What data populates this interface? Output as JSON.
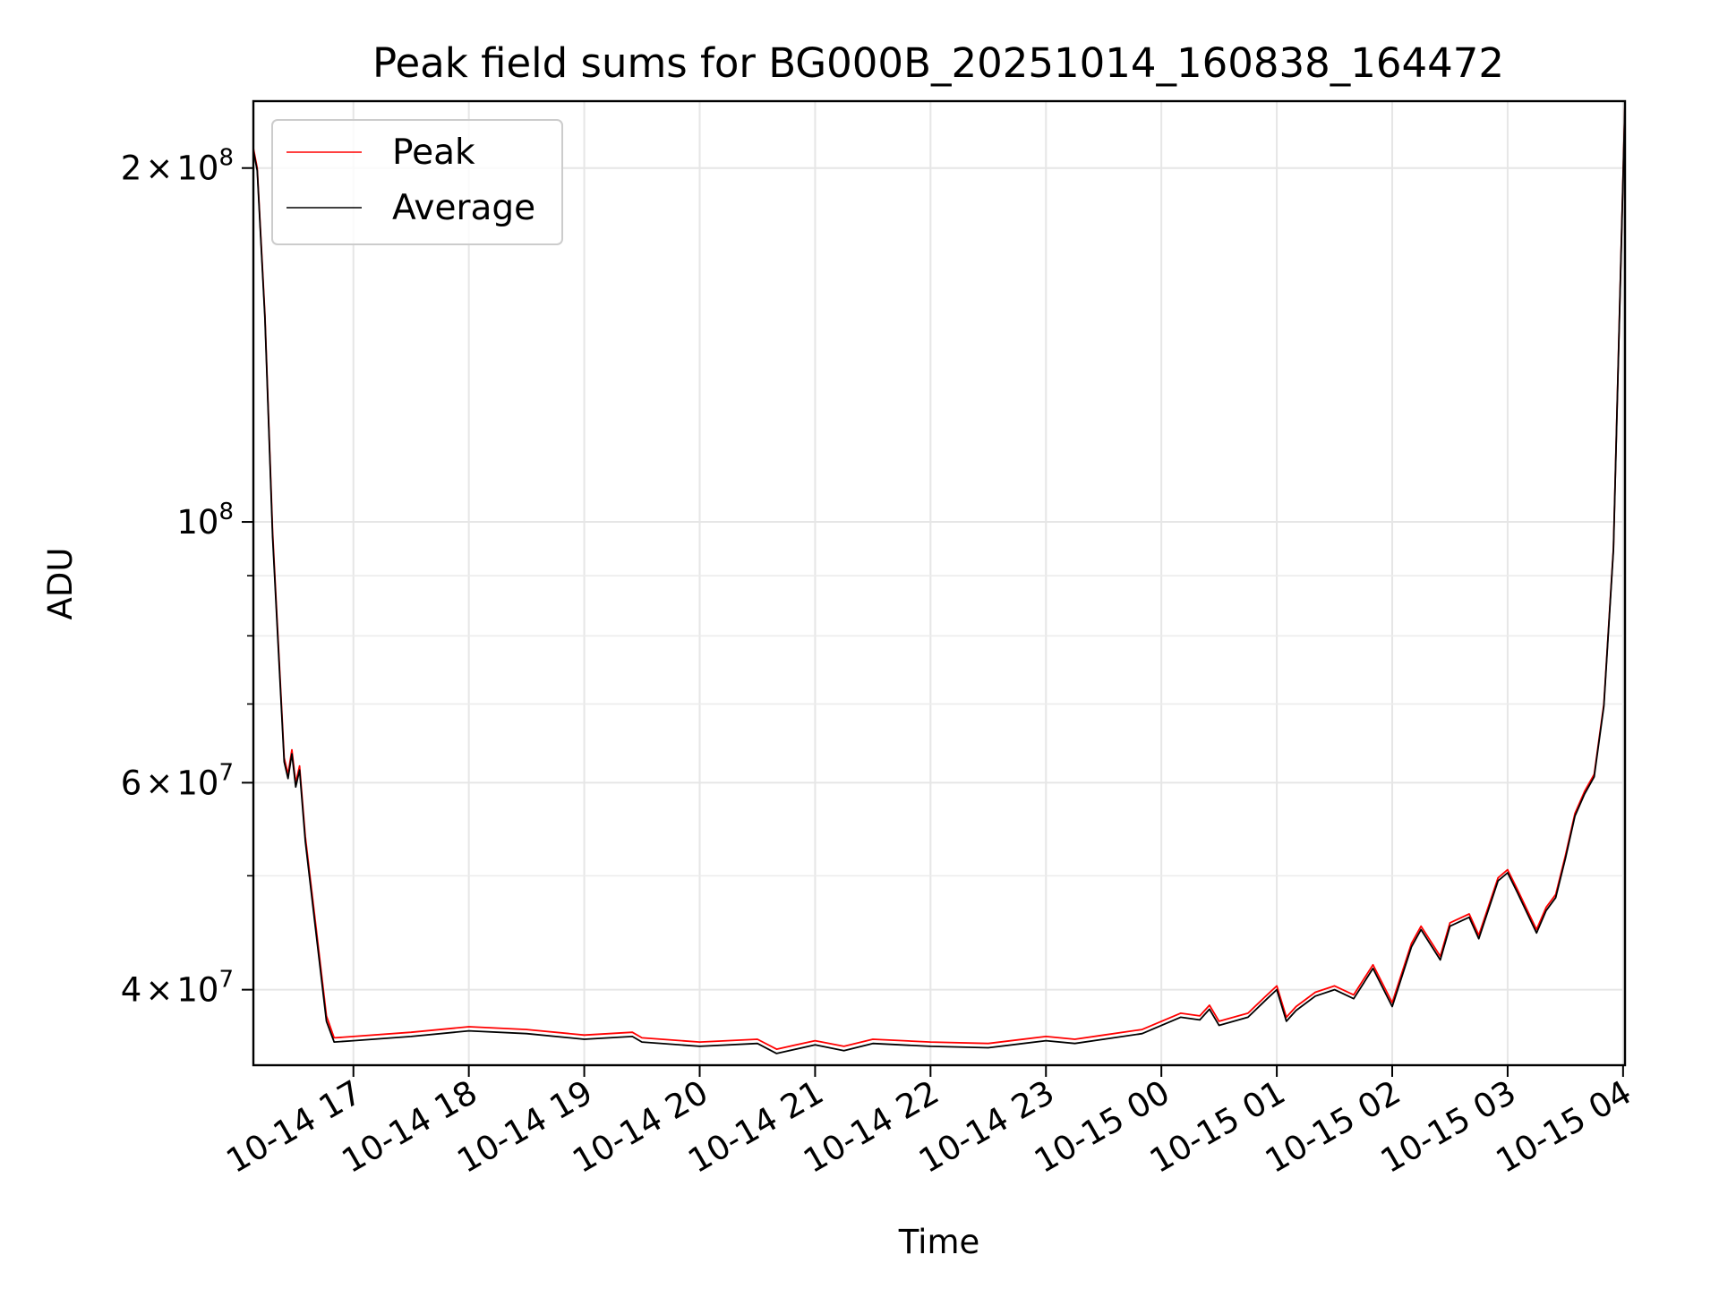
{
  "chart_data": {
    "type": "line",
    "title": "Peak field sums for BG000B_20251014_160838_164472",
    "xlabel": "Time",
    "ylabel": "ADU",
    "yscale": "log",
    "xlim": [
      "2025-10-14 16:08",
      "2025-10-15 04:01"
    ],
    "ylim": [
      34500000,
      228000000
    ],
    "grid": true,
    "legend_position": "upper-left",
    "x_ticks": [
      {
        "t": "2025-10-14 17:00",
        "label": "10-14 17"
      },
      {
        "t": "2025-10-14 18:00",
        "label": "10-14 18"
      },
      {
        "t": "2025-10-14 19:00",
        "label": "10-14 19"
      },
      {
        "t": "2025-10-14 20:00",
        "label": "10-14 20"
      },
      {
        "t": "2025-10-14 21:00",
        "label": "10-14 21"
      },
      {
        "t": "2025-10-14 22:00",
        "label": "10-14 22"
      },
      {
        "t": "2025-10-14 23:00",
        "label": "10-14 23"
      },
      {
        "t": "2025-10-15 00:00",
        "label": "10-15 00"
      },
      {
        "t": "2025-10-15 01:00",
        "label": "10-15 01"
      },
      {
        "t": "2025-10-15 02:00",
        "label": "10-15 02"
      },
      {
        "t": "2025-10-15 03:00",
        "label": "10-15 03"
      },
      {
        "t": "2025-10-15 04:00",
        "label": "10-15 04"
      }
    ],
    "y_major_ticks": [
      {
        "v": 40000000,
        "mantissa": "4",
        "times": "×",
        "base": "10",
        "exp": "7"
      },
      {
        "v": 60000000,
        "mantissa": "6",
        "times": "×",
        "base": "10",
        "exp": "7"
      },
      {
        "v": 100000000,
        "mantissa": "",
        "times": "",
        "base": "10",
        "exp": "8"
      },
      {
        "v": 200000000,
        "mantissa": "2",
        "times": "×",
        "base": "10",
        "exp": "8"
      }
    ],
    "y_minor_ticks": [
      50000000,
      70000000,
      80000000,
      90000000
    ],
    "series": [
      {
        "name": "Peak",
        "color": "#ff0000",
        "x": [
          "2025-10-14 16:08",
          "2025-10-14 16:10",
          "2025-10-14 16:14",
          "2025-10-14 16:18",
          "2025-10-14 16:24",
          "2025-10-14 16:26",
          "16:28",
          "2025-10-14 16:30",
          "2025-10-14 16:32",
          "2025-10-14 16:35",
          "2025-10-14 16:40",
          "2025-10-14 16:46",
          "2025-10-14 16:50",
          "2025-10-14 17:00",
          "2025-10-14 17:30",
          "2025-10-14 18:00",
          "2025-10-14 18:30",
          "2025-10-14 19:00",
          "2025-10-14 19:25",
          "2025-10-14 19:30",
          "2025-10-14 20:00",
          "2025-10-14 20:30",
          "2025-10-14 20:40",
          "2025-10-14 21:00",
          "2025-10-14 21:15",
          "2025-10-14 21:30",
          "2025-10-14 22:00",
          "2025-10-14 22:30",
          "2025-10-14 23:00",
          "2025-10-14 23:15",
          "2025-10-14 23:30",
          "2025-10-14 23:50",
          "2025-10-15 00:10",
          "2025-10-15 00:20",
          "2025-10-15 00:25",
          "2025-10-15 00:30",
          "2025-10-15 00:45",
          "2025-10-15 00:55",
          "2025-10-15 01:00",
          "2025-10-15 01:05",
          "2025-10-15 01:10",
          "2025-10-15 01:20",
          "2025-10-15 01:30",
          "2025-10-15 01:40",
          "2025-10-15 01:50",
          "2025-10-15 02:00",
          "2025-10-15 02:10",
          "2025-10-15 02:15",
          "2025-10-15 02:25",
          "2025-10-15 02:30",
          "2025-10-15 02:40",
          "2025-10-15 02:45",
          "2025-10-15 02:55",
          "2025-10-15 03:00",
          "2025-10-15 03:05",
          "2025-10-15 03:15",
          "2025-10-15 03:20",
          "2025-10-15 03:25",
          "2025-10-15 03:30",
          "2025-10-15 03:35",
          "2025-10-15 03:40",
          "2025-10-15 03:45",
          "2025-10-15 03:50",
          "2025-10-15 03:55",
          "2025-10-15 04:01"
        ],
        "y": [
          208000000,
          200000000,
          150000000,
          98000000,
          63000000,
          61000000,
          64000000,
          60000000,
          62000000,
          54000000,
          46000000,
          38000000,
          36400000,
          36500000,
          36800000,
          37200000,
          37000000,
          36600000,
          36800000,
          36400000,
          36100000,
          36300000,
          35600000,
          36200000,
          35800000,
          36300000,
          36100000,
          36000000,
          36500000,
          36300000,
          36600000,
          37000000,
          38200000,
          38000000,
          38800000,
          37600000,
          38200000,
          39600000,
          40300000,
          37900000,
          38700000,
          39800000,
          40300000,
          39600000,
          42000000,
          39000000,
          43800000,
          45300000,
          42700000,
          45600000,
          46400000,
          44500000,
          49800000,
          50600000,
          48700000,
          45000000,
          47000000,
          48200000,
          52000000,
          56500000,
          59000000,
          61000000,
          70000000,
          95000000,
          228000000
        ]
      },
      {
        "name": "Average",
        "color": "#000000",
        "x": [
          "2025-10-14 16:08",
          "2025-10-14 16:10",
          "2025-10-14 16:14",
          "2025-10-14 16:18",
          "2025-10-14 16:24",
          "2025-10-14 16:26",
          "2025-10-14 16:28",
          "2025-10-14 16:30",
          "2025-10-14 16:32",
          "2025-10-14 16:35",
          "2025-10-14 16:40",
          "2025-10-14 16:46",
          "2025-10-14 16:50",
          "2025-10-14 17:00",
          "2025-10-14 17:30",
          "2025-10-14 18:00",
          "2025-10-14 18:30",
          "2025-10-14 19:00",
          "2025-10-14 19:25",
          "2025-10-14 19:30",
          "2025-10-14 20:00",
          "2025-10-14 20:30",
          "2025-10-14 20:40",
          "2025-10-14 21:00",
          "2025-10-14 21:15",
          "2025-10-14 21:30",
          "2025-10-14 22:00",
          "2025-10-14 22:30",
          "2025-10-14 23:00",
          "2025-10-14 23:15",
          "2025-10-14 23:30",
          "2025-10-14 23:50",
          "2025-10-15 00:10",
          "2025-10-15 00:20",
          "2025-10-15 00:25",
          "2025-10-15 00:30",
          "2025-10-15 00:45",
          "2025-10-15 00:55",
          "2025-10-15 01:00",
          "2025-10-15 01:05",
          "2025-10-15 01:10",
          "2025-10-15 01:20",
          "2025-10-15 01:30",
          "2025-10-15 01:40",
          "2025-10-15 01:50",
          "2025-10-15 02:00",
          "2025-10-15 02:10",
          "2025-10-15 02:15",
          "2025-10-15 02:25",
          "2025-10-15 02:30",
          "2025-10-15 02:40",
          "2025-10-15 02:45",
          "2025-10-15 02:55",
          "2025-10-15 03:00",
          "2025-10-15 03:05",
          "2025-10-15 03:15",
          "2025-10-15 03:20",
          "2025-10-15 03:25",
          "2025-10-15 03:30",
          "2025-10-15 03:35",
          "2025-10-15 03:40",
          "2025-10-15 03:45",
          "2025-10-15 03:50",
          "2025-10-15 03:55",
          "2025-10-15 04:01"
        ],
        "y": [
          207000000,
          199000000,
          149000000,
          97000000,
          62500000,
          60500000,
          63500000,
          59500000,
          61500000,
          53500000,
          45500000,
          37600000,
          36100000,
          36200000,
          36500000,
          36900000,
          36700000,
          36300000,
          36500000,
          36100000,
          35800000,
          36000000,
          35300000,
          35900000,
          35500000,
          36000000,
          35800000,
          35700000,
          36200000,
          36000000,
          36300000,
          36700000,
          37900000,
          37700000,
          38500000,
          37300000,
          37900000,
          39300000,
          40000000,
          37600000,
          38400000,
          39500000,
          40000000,
          39300000,
          41700000,
          38700000,
          43500000,
          45000000,
          42400000,
          45300000,
          46100000,
          44200000,
          49500000,
          50300000,
          48400000,
          44700000,
          46700000,
          47900000,
          51700000,
          56200000,
          58700000,
          60700000,
          69700000,
          94700000,
          227000000
        ]
      }
    ]
  }
}
